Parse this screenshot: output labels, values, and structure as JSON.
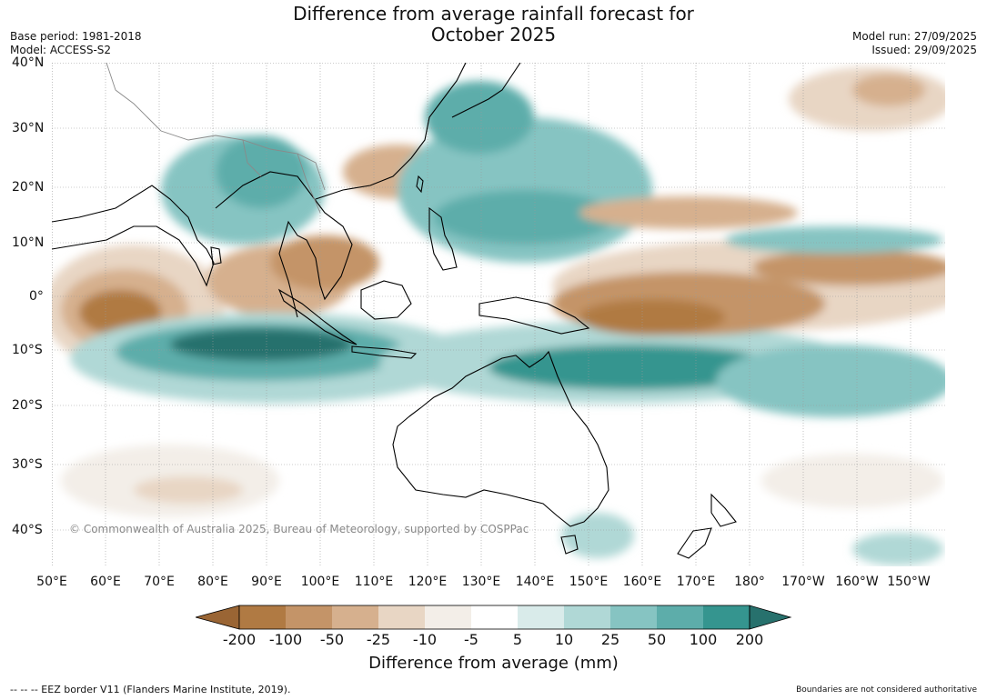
{
  "header": {
    "title_line1": "Difference from average rainfall forecast for",
    "title_line2": "October 2025",
    "base_period": "Base period: 1981-2018",
    "model": "Model: ACCESS-S2",
    "model_run": "Model run: 27/09/2025",
    "issued": "Issued: 29/09/2025"
  },
  "map": {
    "latitude_labels": [
      "40°N",
      "30°N",
      "20°N",
      "10°N",
      "0°",
      "10°S",
      "20°S",
      "30°S",
      "40°S"
    ],
    "longitude_labels": [
      "50°E",
      "60°E",
      "70°E",
      "80°E",
      "90°E",
      "100°E",
      "110°E",
      "120°E",
      "130°E",
      "140°E",
      "150°E",
      "160°E",
      "170°E",
      "180°",
      "170°W",
      "160°W",
      "150°W"
    ],
    "copyright": "© Commonwealth of Australia 2025, Bureau of Meteorology, supported by COSPPac"
  },
  "colorbar": {
    "title": "Difference from average (mm)",
    "tick_labels": [
      "-200",
      "-100",
      "-50",
      "-25",
      "-10",
      "-5",
      "5",
      "10",
      "25",
      "50",
      "100",
      "200"
    ],
    "colors": [
      "#9a6534",
      "#b07a43",
      "#c49468",
      "#d6b08e",
      "#e8d6c4",
      "#f3eee8",
      "#ffffff",
      "#d9ebea",
      "#b0d8d6",
      "#86c4c2",
      "#5dadaa",
      "#35958f",
      "#27716d"
    ]
  },
  "footer": {
    "eez_legend": "--  --  -- EEZ border V11 (Flanders Marine Institute, 2019).",
    "disclaimer": "Boundaries are not considered authoritative"
  }
}
